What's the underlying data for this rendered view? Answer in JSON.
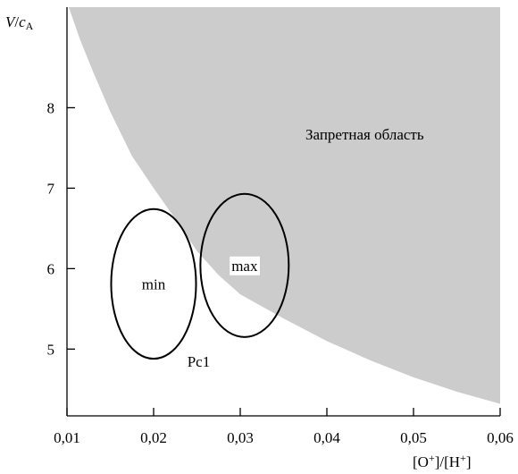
{
  "chart_data": {
    "type": "region-plot",
    "xlabel": "[O⁺]/[H⁺]",
    "ylabel": "V/cA",
    "xlim": [
      0.01,
      0.06
    ],
    "ylim": [
      4.17,
      9.25
    ],
    "x_ticks": [
      {
        "value": 0.01,
        "label": "0,01"
      },
      {
        "value": 0.02,
        "label": "0,02"
      },
      {
        "value": 0.03,
        "label": "0,03"
      },
      {
        "value": 0.04,
        "label": "0,04"
      },
      {
        "value": 0.05,
        "label": "0,05"
      },
      {
        "value": 0.06,
        "label": "0,06"
      }
    ],
    "y_ticks": [
      {
        "value": 5,
        "label": "5"
      },
      {
        "value": 6,
        "label": "6"
      },
      {
        "value": 7,
        "label": "7"
      },
      {
        "value": 8,
        "label": "8"
      }
    ],
    "forbidden_region": {
      "label": "Запретная область",
      "fill": "#cccccc",
      "boundary": [
        {
          "x": 0.0102,
          "y": 9.25
        },
        {
          "x": 0.0115,
          "y": 8.85
        },
        {
          "x": 0.013,
          "y": 8.45
        },
        {
          "x": 0.015,
          "y": 7.95
        },
        {
          "x": 0.0175,
          "y": 7.4
        },
        {
          "x": 0.02,
          "y": 7.0
        },
        {
          "x": 0.0225,
          "y": 6.62
        },
        {
          "x": 0.025,
          "y": 6.22
        },
        {
          "x": 0.0275,
          "y": 5.92
        },
        {
          "x": 0.03,
          "y": 5.68
        },
        {
          "x": 0.035,
          "y": 5.38
        },
        {
          "x": 0.04,
          "y": 5.1
        },
        {
          "x": 0.045,
          "y": 4.86
        },
        {
          "x": 0.05,
          "y": 4.65
        },
        {
          "x": 0.055,
          "y": 4.47
        },
        {
          "x": 0.06,
          "y": 4.32
        }
      ]
    },
    "ellipses": [
      {
        "label": "min",
        "cx": 0.02,
        "cy": 5.81,
        "rx": 0.0049,
        "ry": 0.93
      },
      {
        "label": "max",
        "cx": 0.0305,
        "cy": 6.04,
        "rx": 0.0051,
        "ry": 0.89
      }
    ],
    "annotations": [
      {
        "text": "Pc1",
        "x": 0.0252,
        "y": 4.78
      }
    ]
  }
}
